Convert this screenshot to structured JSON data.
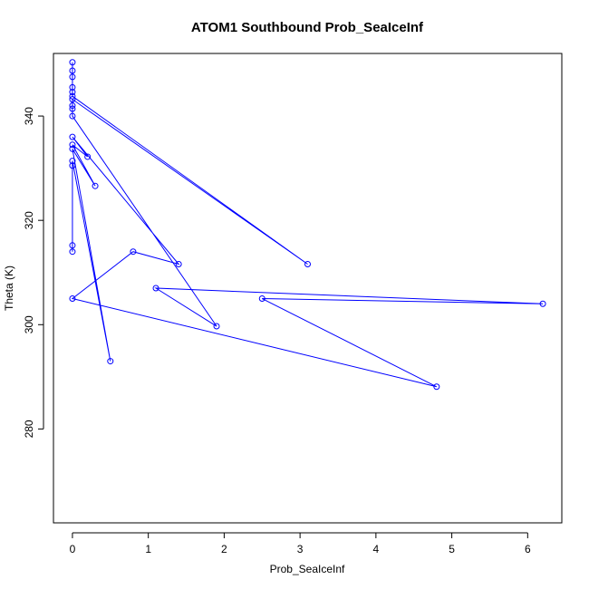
{
  "chart_data": {
    "type": "scatter",
    "title": "ATOM1 Southbound Prob_SeaIceInf",
    "xlabel": "Prob_SeaIceInf",
    "ylabel": "Theta (K)",
    "xlim": [
      -0.25,
      6.45
    ],
    "ylim": [
      262,
      352
    ],
    "x_ticks": [
      0,
      1,
      2,
      3,
      4,
      5,
      6
    ],
    "y_ticks": [
      280,
      300,
      320,
      340
    ],
    "grid": false,
    "legend": "none",
    "colors": {
      "series": "#0000ff",
      "axis": "#000000"
    },
    "series": [
      {
        "marker": "open-circle",
        "line": true,
        "points": [
          {
            "x": 0,
            "y": 350.3
          },
          {
            "x": 0,
            "y": 348.7
          },
          {
            "x": 0,
            "y": 347.5
          },
          {
            "x": 0,
            "y": 345.5
          },
          {
            "x": 0,
            "y": 344.6
          },
          {
            "x": 0,
            "y": 343.8
          },
          {
            "x": 3.1,
            "y": 311.6
          },
          {
            "x": 0,
            "y": 343.2
          },
          {
            "x": 0,
            "y": 342.0
          },
          {
            "x": 0,
            "y": 341.4
          },
          {
            "x": 0,
            "y": 340.0
          },
          {
            "x": 1.9,
            "y": 299.7
          },
          {
            "x": 1.1,
            "y": 307.0
          },
          {
            "x": 6.2,
            "y": 304.0
          },
          {
            "x": 2.5,
            "y": 305.0
          },
          {
            "x": 4.8,
            "y": 288.1
          },
          {
            "x": 0,
            "y": 305.0
          },
          {
            "x": 0.8,
            "y": 314.0
          },
          {
            "x": 1.4,
            "y": 311.6
          },
          {
            "x": 0,
            "y": 336.0
          },
          {
            "x": 0.2,
            "y": 332.2
          },
          {
            "x": 0,
            "y": 334.5
          },
          {
            "x": 0.3,
            "y": 326.6
          },
          {
            "x": 0,
            "y": 333.7
          },
          {
            "x": 0.5,
            "y": 293.0
          },
          {
            "x": 0,
            "y": 331.4
          },
          {
            "x": 0,
            "y": 330.5
          },
          {
            "x": 0,
            "y": 315.2
          },
          {
            "x": 0,
            "y": 314.0
          }
        ]
      }
    ]
  }
}
